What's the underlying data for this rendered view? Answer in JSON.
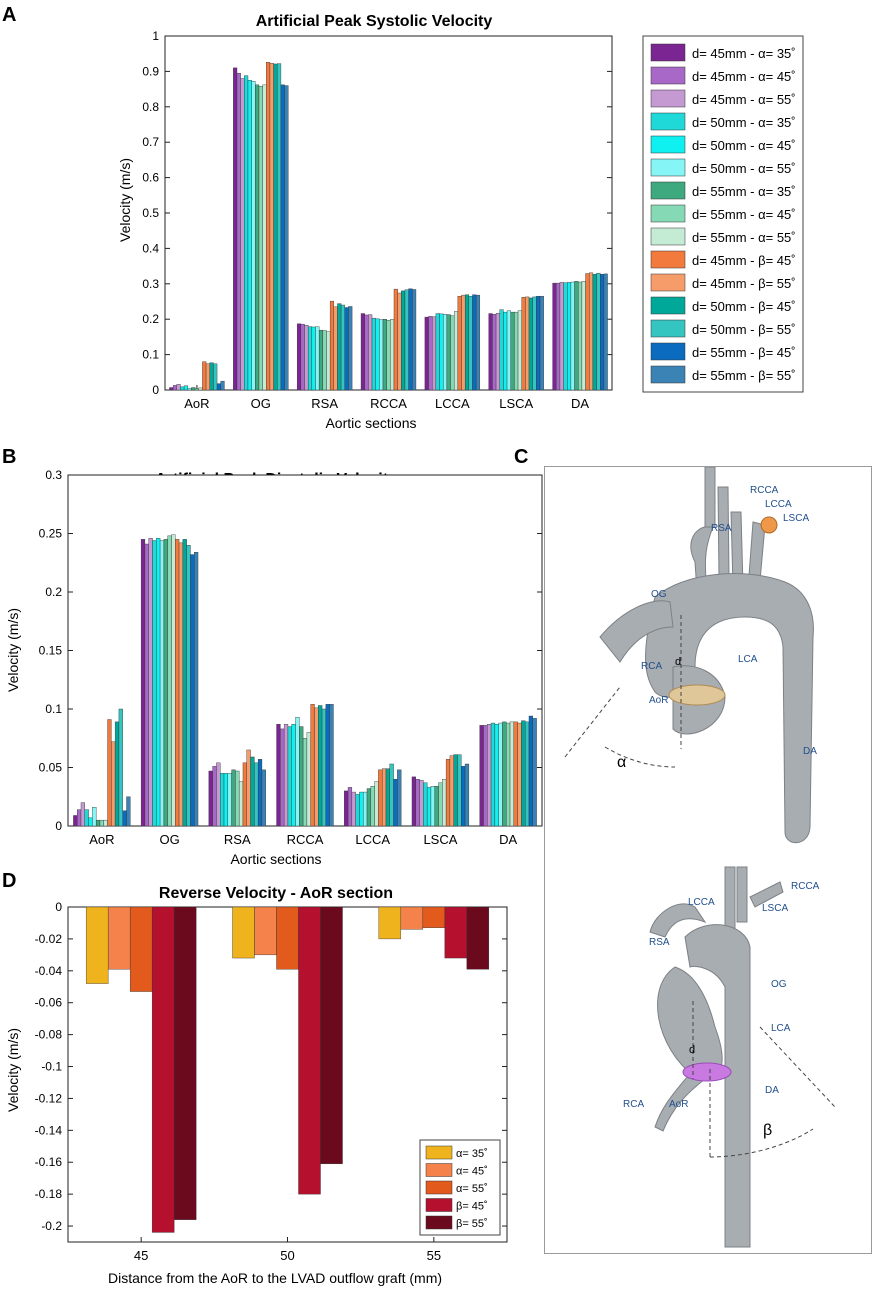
{
  "panels": {
    "a": "A",
    "b": "B",
    "c": "C",
    "d": "D"
  },
  "colors": {
    "sys": [
      "#7b2592",
      "#a768c8",
      "#c59ad3",
      "#1fd9d9",
      "#0ff0f0",
      "#86f5f5",
      "#3ea87e",
      "#85d9b5",
      "#c4ebd4",
      "#f27a3d",
      "#f69c6a",
      "#00a89a",
      "#35c5c1",
      "#0b6cbf",
      "#3b82b5"
    ],
    "rev": [
      "#efb31e",
      "#f5824a",
      "#e25a1c",
      "#b5102e",
      "#6b0a1d"
    ],
    "vessel": "#a8adb2",
    "plane": "#c87ae0",
    "anat_text": "#1f4e8c"
  },
  "chart_data": [
    {
      "id": "a",
      "type": "bar",
      "title": "Artificial Peak Systolic Velocity",
      "xlabel": "Aortic sections",
      "ylabel": "Velocity (m/s)",
      "ylim": [
        0,
        1
      ],
      "yticks": [
        "0",
        "0.1",
        "0.2",
        "0.3",
        "0.4",
        "0.5",
        "0.6",
        "0.7",
        "0.8",
        "0.9",
        "1"
      ],
      "categories": [
        "AoR",
        "OG",
        "RSA",
        "RCCA",
        "LCCA",
        "LSCA",
        "DA"
      ],
      "legend_position": "outside-right",
      "series": [
        {
          "name": "d= 45mm -  α= 35˚",
          "values": [
            0.007,
            0.91,
            0.187,
            0.216,
            0.206,
            0.216,
            0.302
          ]
        },
        {
          "name": "d= 45mm -  α= 45˚",
          "values": [
            0.013,
            0.895,
            0.186,
            0.212,
            0.208,
            0.214,
            0.302
          ]
        },
        {
          "name": "d= 45mm -  α= 55˚",
          "values": [
            0.016,
            0.88,
            0.183,
            0.213,
            0.207,
            0.217,
            0.304
          ]
        },
        {
          "name": "d= 50mm -  α= 35˚",
          "values": [
            0.009,
            0.888,
            0.179,
            0.203,
            0.216,
            0.227,
            0.303
          ]
        },
        {
          "name": "d= 50mm -  α= 45˚",
          "values": [
            0.012,
            0.875,
            0.178,
            0.201,
            0.215,
            0.22,
            0.304
          ]
        },
        {
          "name": "d= 50mm -  α= 55˚",
          "values": [
            0.005,
            0.872,
            0.179,
            0.199,
            0.214,
            0.224,
            0.305
          ]
        },
        {
          "name": "d= 55mm -  α= 35˚",
          "values": [
            0.007,
            0.862,
            0.169,
            0.2,
            0.213,
            0.22,
            0.307
          ]
        },
        {
          "name": "d= 55mm -  α= 45˚",
          "values": [
            0.004,
            0.858,
            0.168,
            0.197,
            0.21,
            0.22,
            0.305
          ]
        },
        {
          "name": "d= 55mm -  α= 55˚",
          "values": [
            0.006,
            0.862,
            0.165,
            0.2,
            0.222,
            0.224,
            0.307
          ]
        },
        {
          "name": "d= 45mm -  β= 45˚",
          "values": [
            0.08,
            0.926,
            0.251,
            0.285,
            0.265,
            0.262,
            0.329
          ]
        },
        {
          "name": "d= 45mm -  β= 55˚",
          "values": [
            0.074,
            0.923,
            0.235,
            0.274,
            0.268,
            0.263,
            0.331
          ]
        },
        {
          "name": "d= 50mm -  β= 45˚",
          "values": [
            0.077,
            0.921,
            0.244,
            0.28,
            0.269,
            0.26,
            0.327
          ]
        },
        {
          "name": "d= 50mm -  β= 55˚",
          "values": [
            0.074,
            0.922,
            0.24,
            0.283,
            0.265,
            0.263,
            0.33
          ]
        },
        {
          "name": "d= 55mm -  β= 45˚",
          "values": [
            0.018,
            0.862,
            0.233,
            0.286,
            0.269,
            0.265,
            0.327
          ]
        },
        {
          "name": "d= 55mm -  β= 55˚",
          "values": [
            0.025,
            0.86,
            0.236,
            0.284,
            0.268,
            0.265,
            0.328
          ]
        }
      ]
    },
    {
      "id": "b",
      "type": "bar",
      "title": "Artificial Peak Diastolic Velocity",
      "xlabel": "Aortic sections",
      "ylabel": "Velocity (m/s)",
      "ylim": [
        0,
        0.3
      ],
      "yticks": [
        "0",
        "0.05",
        "0.1",
        "0.15",
        "0.2",
        "0.25",
        "0.3"
      ],
      "categories": [
        "AoR",
        "OG",
        "RSA",
        "RCCA",
        "LCCA",
        "LSCA",
        "DA"
      ],
      "series": [
        {
          "name": "d= 45mm -  α= 35˚",
          "values": [
            0.009,
            0.245,
            0.047,
            0.087,
            0.03,
            0.042,
            0.086
          ]
        },
        {
          "name": "d= 45mm -  α= 45˚",
          "values": [
            0.014,
            0.241,
            0.051,
            0.083,
            0.033,
            0.04,
            0.086
          ]
        },
        {
          "name": "d= 45mm -  α= 55˚",
          "values": [
            0.02,
            0.246,
            0.054,
            0.087,
            0.029,
            0.039,
            0.087
          ]
        },
        {
          "name": "d= 50mm -  α= 35˚",
          "values": [
            0.014,
            0.244,
            0.045,
            0.085,
            0.027,
            0.037,
            0.088
          ]
        },
        {
          "name": "d= 50mm -  α= 45˚",
          "values": [
            0.007,
            0.246,
            0.045,
            0.087,
            0.029,
            0.033,
            0.087
          ]
        },
        {
          "name": "d= 50mm -  α= 55˚",
          "values": [
            0.016,
            0.244,
            0.045,
            0.093,
            0.029,
            0.034,
            0.088
          ]
        },
        {
          "name": "d= 55mm -  α= 35˚",
          "values": [
            0.005,
            0.245,
            0.048,
            0.085,
            0.032,
            0.034,
            0.089
          ]
        },
        {
          "name": "d= 55mm -  α= 45˚",
          "values": [
            0.005,
            0.248,
            0.047,
            0.075,
            0.034,
            0.037,
            0.088
          ]
        },
        {
          "name": "d= 55mm -  α= 55˚",
          "values": [
            0.005,
            0.249,
            0.038,
            0.08,
            0.038,
            0.04,
            0.089
          ]
        },
        {
          "name": "d= 45mm -  β= 45˚",
          "values": [
            0.091,
            0.245,
            0.054,
            0.104,
            0.048,
            0.057,
            0.089
          ]
        },
        {
          "name": "d= 45mm -  β= 55˚",
          "values": [
            0.072,
            0.242,
            0.065,
            0.101,
            0.049,
            0.06,
            0.088
          ]
        },
        {
          "name": "d= 50mm -  β= 45˚",
          "values": [
            0.089,
            0.245,
            0.059,
            0.103,
            0.049,
            0.061,
            0.09
          ]
        },
        {
          "name": "d= 50mm -  β= 55˚",
          "values": [
            0.1,
            0.24,
            0.054,
            0.1,
            0.053,
            0.061,
            0.089
          ]
        },
        {
          "name": "d= 55mm -  β= 45˚",
          "values": [
            0.013,
            0.232,
            0.057,
            0.104,
            0.04,
            0.051,
            0.094
          ]
        },
        {
          "name": "d= 55mm -  β= 55˚",
          "values": [
            0.025,
            0.234,
            0.048,
            0.104,
            0.048,
            0.053,
            0.092
          ]
        }
      ]
    },
    {
      "id": "d",
      "type": "bar",
      "title": "Reverse Velocity - AoR section",
      "xlabel": "Distance from the AoR to the LVAD outflow graft (mm)",
      "ylabel": "Velocity (m/s)",
      "ylim": [
        -0.21,
        0
      ],
      "yticks": [
        "0",
        "-0.02",
        "-0.04",
        "-0.06",
        "-0.08",
        "-0.1",
        "-0.12",
        "-0.14",
        "-0.16",
        "-0.18",
        "-0.2"
      ],
      "categories": [
        "45",
        "50",
        "55"
      ],
      "legend_position": "bottom-right",
      "series": [
        {
          "name": "α= 35˚",
          "values": [
            -0.048,
            -0.032,
            -0.02
          ]
        },
        {
          "name": "α= 45˚",
          "values": [
            -0.039,
            -0.03,
            -0.014
          ]
        },
        {
          "name": "α= 55˚",
          "values": [
            -0.053,
            -0.039,
            -0.013
          ]
        },
        {
          "name": "β= 45˚",
          "values": [
            -0.204,
            -0.18,
            -0.032
          ]
        },
        {
          "name": "β= 55˚",
          "values": [
            -0.196,
            -0.161,
            -0.039
          ]
        }
      ]
    }
  ],
  "anatomy": {
    "top_labels": {
      "rcca": "RCCA",
      "lcca": "LCCA",
      "lsca": "LSCA",
      "rsa": "RSA",
      "og": "OG",
      "rca": "RCA",
      "lca": "LCA",
      "aor": "AoR",
      "da": "DA",
      "d": "d",
      "alpha": "α"
    },
    "bottom_labels": {
      "rcca": "RCCA",
      "lcca": "LCCA",
      "lsca": "LSCA",
      "rsa": "RSA",
      "og": "OG",
      "lca": "LCA",
      "rca": "RCA",
      "aor": "AoR",
      "da": "DA",
      "d": "d",
      "beta": "β"
    }
  }
}
